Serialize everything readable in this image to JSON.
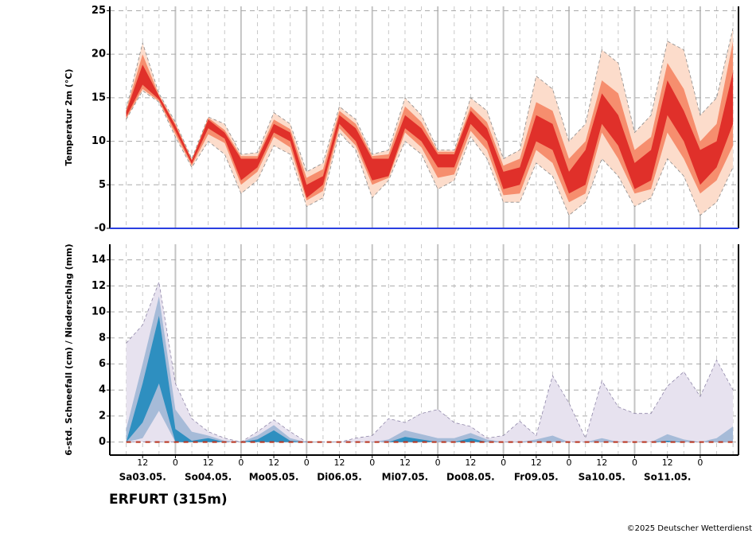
{
  "chart_data": [
    {
      "type": "band",
      "ylabel": "Temperatur 2m (°C)",
      "x": [
        6,
        12,
        18,
        24,
        30,
        36,
        42,
        48,
        54,
        60,
        66,
        72,
        78,
        84,
        90,
        96,
        102,
        108,
        114,
        120,
        126,
        132,
        138,
        144,
        150,
        156,
        162,
        168,
        174,
        180,
        186,
        192,
        198,
        204,
        210,
        216,
        222,
        228
      ],
      "xlim": [
        0,
        230
      ],
      "ylim": [
        0,
        25.5
      ],
      "yticks": [
        {
          "value": 0,
          "label": "-0"
        },
        5,
        10,
        15,
        20,
        25
      ],
      "grid": true,
      "edge_color": "#8a8a8a",
      "zero_line_color": "#2a3fe0",
      "bands": [
        {
          "color": "#fcdccb",
          "lower": [
            12.5,
            15.8,
            14.5,
            10.5,
            7,
            10,
            8.5,
            4,
            5.5,
            9.5,
            8.5,
            2.5,
            3.5,
            11,
            9,
            3.5,
            5.5,
            10,
            8.5,
            4.5,
            5.5,
            10.5,
            8,
            3,
            3,
            7.5,
            6,
            1.5,
            3,
            8,
            6,
            2.5,
            3.5,
            8,
            6,
            1.5,
            3,
            7
          ],
          "upper": [
            13.7,
            21.3,
            15.5,
            12.2,
            8,
            12.8,
            12,
            8.5,
            8.7,
            13.3,
            12,
            6.5,
            7.5,
            14,
            12.5,
            8.5,
            9,
            15,
            13,
            9,
            9,
            15,
            13.5,
            8,
            9,
            17.5,
            16,
            10,
            12,
            20.5,
            19,
            11,
            13,
            21.5,
            20.5,
            13,
            15,
            23
          ]
        },
        {
          "color": "#f68e6e",
          "lower": [
            12.6,
            16,
            14.6,
            10.8,
            7.2,
            10.8,
            9.8,
            5,
            6.5,
            10.5,
            9.3,
            3.2,
            4.3,
            11.5,
            9.5,
            5,
            5.8,
            11,
            9.3,
            5.8,
            6.2,
            11.2,
            9,
            3.8,
            4,
            9,
            7.5,
            3,
            4,
            11,
            8,
            4,
            4.5,
            11,
            8,
            4,
            5.5,
            9.5
          ],
          "upper": [
            13.6,
            20,
            15.3,
            12,
            7.9,
            12.7,
            11.3,
            8.3,
            8.3,
            12.5,
            11.4,
            5.8,
            6.8,
            13.5,
            12,
            8.3,
            8.5,
            14,
            12.2,
            8.8,
            8.8,
            14,
            12.2,
            7.2,
            8,
            14.5,
            13.5,
            8,
            10,
            17,
            15.5,
            9,
            10.5,
            19,
            16,
            10,
            12,
            21.5
          ]
        },
        {
          "color": "#e0302a",
          "lower": [
            12.8,
            16.5,
            14.8,
            11.2,
            7.4,
            11.5,
            10.3,
            5.5,
            7,
            11,
            10,
            3.5,
            5,
            12,
            10,
            5.5,
            6,
            11.5,
            10,
            7,
            7,
            12,
            10,
            4.5,
            5,
            10,
            9,
            4,
            5,
            12,
            9.5,
            4.5,
            5.5,
            13,
            10,
            5,
            7,
            12
          ],
          "upper": [
            13.4,
            18.8,
            15.2,
            11.8,
            7.8,
            12.5,
            11,
            8,
            8,
            12,
            11,
            5,
            6,
            13,
            11.5,
            8,
            8,
            13,
            11.5,
            8.5,
            8.5,
            13.5,
            11.5,
            6.5,
            7,
            13,
            12,
            6.5,
            9,
            15.5,
            13,
            7.5,
            9,
            17,
            13.5,
            9,
            10,
            18
          ]
        }
      ]
    },
    {
      "type": "band",
      "ylabel": "6-std. Schneefall (cm) / Niederschlag (mm)",
      "x": [
        6,
        12,
        18,
        24,
        30,
        36,
        42,
        48,
        54,
        60,
        66,
        72,
        78,
        84,
        90,
        96,
        102,
        108,
        114,
        120,
        126,
        132,
        138,
        144,
        150,
        156,
        162,
        168,
        174,
        180,
        186,
        192,
        198,
        204,
        210,
        216,
        222,
        228
      ],
      "xlim": [
        0,
        230
      ],
      "ylim": [
        -1,
        15.2
      ],
      "yticks": [
        0,
        2,
        4,
        6,
        8,
        10,
        12,
        14
      ],
      "xticks": [
        12,
        {
          "value": 24,
          "label": "0"
        },
        {
          "value": 36,
          "label": "12"
        },
        {
          "value": 48,
          "label": "0"
        },
        {
          "value": 60,
          "label": "12"
        },
        {
          "value": 72,
          "label": "0"
        },
        {
          "value": 84,
          "label": "12"
        },
        {
          "value": 96,
          "label": "0"
        },
        {
          "value": 108,
          "label": "12"
        },
        {
          "value": 120,
          "label": "0"
        },
        {
          "value": 132,
          "label": "12"
        },
        {
          "value": 144,
          "label": "0"
        },
        {
          "value": 156,
          "label": "12"
        },
        {
          "value": 168,
          "label": "0"
        },
        {
          "value": 180,
          "label": "12"
        },
        {
          "value": 192,
          "label": "0"
        },
        {
          "value": 204,
          "label": "12"
        },
        {
          "value": 216,
          "label": "0"
        }
      ],
      "day_ticks": [
        {
          "value": 12,
          "label": "Sa03.05."
        },
        {
          "value": 36,
          "label": "So04.05."
        },
        {
          "value": 60,
          "label": "Mo05.05."
        },
        {
          "value": 84,
          "label": "Di06.05."
        },
        {
          "value": 108,
          "label": "Mi07.05."
        },
        {
          "value": 132,
          "label": "Do08.05."
        },
        {
          "value": 156,
          "label": "Fr09.05."
        },
        {
          "value": 180,
          "label": "Sa10.05."
        },
        {
          "value": 204,
          "label": "So11.05."
        }
      ],
      "grid": true,
      "edge_color": "#8f86a8",
      "bands": [
        {
          "color": "#e7e2ef",
          "lower": [
            0,
            0,
            0,
            0,
            0,
            0,
            0,
            0,
            0,
            0,
            0,
            0,
            0,
            0,
            0,
            0,
            0,
            0,
            0,
            0,
            0,
            0,
            0,
            0,
            0,
            0,
            0,
            0,
            0,
            0,
            0,
            0,
            0,
            0,
            0,
            0,
            0,
            0
          ],
          "upper": [
            7.6,
            9,
            12.3,
            4.5,
            1.8,
            0.8,
            0.3,
            0,
            0.8,
            1.7,
            0.8,
            0,
            0,
            0,
            0.3,
            0.5,
            1.8,
            1.5,
            2.2,
            2.5,
            1.5,
            1.2,
            0.3,
            0.5,
            1.6,
            0.5,
            5.1,
            3,
            0.3,
            4.7,
            2.7,
            2.2,
            2.2,
            4.3,
            5.4,
            3.5,
            6.3,
            4
          ]
        },
        {
          "color": "#a6bbd8",
          "lower": [
            0,
            0.3,
            2.4,
            0,
            0,
            0,
            0,
            0,
            0,
            0,
            0,
            0,
            0,
            0,
            0,
            0,
            0,
            0,
            0,
            0,
            0,
            0,
            0,
            0,
            0,
            0,
            0,
            0,
            0,
            0,
            0,
            0,
            0,
            0,
            0,
            0,
            0,
            0
          ],
          "upper": [
            1,
            6,
            11.2,
            2.5,
            0.8,
            0.5,
            0.1,
            0,
            0.5,
            1.3,
            0.3,
            0,
            0,
            0,
            0,
            0,
            0.2,
            0.9,
            0.6,
            0.3,
            0.3,
            0.7,
            0.2,
            0,
            0,
            0.2,
            0.5,
            0,
            0,
            0.3,
            0,
            0,
            0,
            0.6,
            0.2,
            0,
            0.3,
            1.2
          ]
        },
        {
          "color": "#2e8fc0",
          "lower": [
            0,
            1.5,
            4.5,
            0,
            0,
            0,
            0,
            0,
            0,
            0,
            0,
            0,
            0,
            0,
            0,
            0,
            0,
            0,
            0,
            0,
            0,
            0,
            0,
            0,
            0,
            0,
            0,
            0,
            0,
            0,
            0,
            0,
            0,
            0,
            0,
            0,
            0,
            0
          ],
          "upper": [
            0,
            4.5,
            9.7,
            1,
            0.1,
            0.3,
            0,
            0,
            0.2,
            0.9,
            0.1,
            0,
            0,
            0,
            0,
            0,
            0,
            0.4,
            0.2,
            0,
            0,
            0.3,
            0,
            0,
            0,
            0,
            0,
            0,
            0,
            0,
            0,
            0,
            0,
            0.1,
            0,
            0,
            0,
            0
          ]
        }
      ],
      "median": {
        "color": "#b8341f",
        "values": [
          0,
          0,
          0,
          0,
          0,
          0,
          0,
          0,
          0,
          0,
          0,
          0,
          0,
          0,
          0,
          0,
          0,
          0,
          0,
          0,
          0,
          0,
          0,
          0,
          0,
          0,
          0,
          0,
          0,
          0,
          0,
          0,
          0,
          0,
          0,
          0,
          0,
          0
        ]
      }
    }
  ],
  "station": "ERFURT (315m)",
  "copyright": "©2025 Deutscher Wetterdienst"
}
